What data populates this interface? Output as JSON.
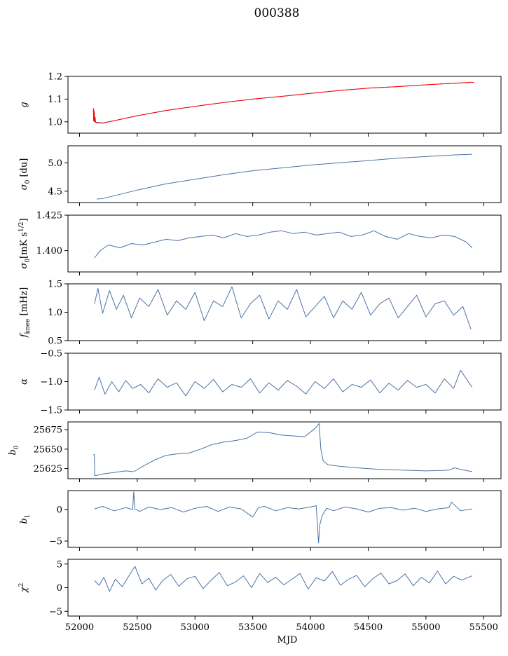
{
  "figure_title": "000388",
  "colors": {
    "series": "#4c72a4",
    "model": "#ff0000",
    "frame": "#000000"
  },
  "chart_data": [
    {
      "id": "g",
      "type": "line",
      "ylabel": "g",
      "xlim": [
        51900,
        55650
      ],
      "ylim": [
        0.95,
        1.2
      ],
      "yticks": [
        1.0,
        1.1,
        1.2
      ],
      "ytick_labels": [
        "1.0",
        "1.1",
        "1.2"
      ],
      "series": [
        {
          "color": "#4c72a4",
          "x": [
            52120,
            52140,
            52200,
            52300,
            52500,
            52750,
            53000,
            53250,
            53500,
            53750,
            54000,
            54250,
            54500,
            54750,
            55000,
            55250,
            55400
          ],
          "y": [
            1.005,
            0.998,
            0.995,
            1.005,
            1.027,
            1.05,
            1.068,
            1.085,
            1.1,
            1.112,
            1.125,
            1.138,
            1.148,
            1.155,
            1.163,
            1.17,
            1.174
          ]
        },
        {
          "color": "#ff0000",
          "x": [
            52120,
            52122,
            52124,
            52126,
            52128,
            52130,
            52135,
            52140,
            52150,
            52200,
            52300,
            52500,
            52750,
            53000,
            53250,
            53500,
            53750,
            54000,
            54250,
            54500,
            54750,
            55000,
            55250,
            55400,
            55420
          ],
          "y": [
            1.06,
            1.005,
            1.055,
            1.002,
            1.045,
            1.0,
            1.02,
            0.998,
            0.995,
            0.994,
            1.005,
            1.027,
            1.05,
            1.068,
            1.085,
            1.1,
            1.112,
            1.125,
            1.138,
            1.148,
            1.155,
            1.163,
            1.17,
            1.174,
            1.172
          ]
        }
      ]
    },
    {
      "id": "sigma0-du",
      "type": "line",
      "ylabel": "σ0 [du]",
      "xlim": [
        51900,
        55650
      ],
      "ylim": [
        4.3,
        5.3
      ],
      "yticks": [
        4.5,
        5.0
      ],
      "ytick_labels": [
        "4.5",
        "5.0"
      ],
      "series": [
        {
          "color": "#4c72a4",
          "x": [
            52150,
            52200,
            52300,
            52500,
            52750,
            53000,
            53250,
            53500,
            53750,
            54000,
            54250,
            54500,
            54750,
            55000,
            55250,
            55400
          ],
          "y": [
            4.36,
            4.37,
            4.42,
            4.52,
            4.63,
            4.71,
            4.79,
            4.86,
            4.91,
            4.96,
            5.0,
            5.04,
            5.08,
            5.11,
            5.14,
            5.15
          ]
        }
      ]
    },
    {
      "id": "sigma0-mks",
      "type": "line",
      "ylabel": "σ0[mKs1/2]",
      "xlim": [
        51900,
        55650
      ],
      "ylim": [
        1.385,
        1.425
      ],
      "yticks": [
        1.4,
        1.425
      ],
      "ytick_labels": [
        "1.400",
        "1.425"
      ],
      "series": [
        {
          "color": "#4c72a4",
          "x": [
            52130,
            52180,
            52250,
            52350,
            52450,
            52550,
            52650,
            52750,
            52850,
            52950,
            53050,
            53150,
            53250,
            53350,
            53450,
            53550,
            53650,
            53750,
            53850,
            53950,
            54050,
            54150,
            54250,
            54350,
            54450,
            54550,
            54650,
            54750,
            54850,
            54950,
            55050,
            55150,
            55250,
            55350,
            55400
          ],
          "y": [
            1.395,
            1.4,
            1.404,
            1.402,
            1.405,
            1.404,
            1.406,
            1.408,
            1.407,
            1.409,
            1.41,
            1.411,
            1.409,
            1.412,
            1.41,
            1.411,
            1.413,
            1.414,
            1.412,
            1.413,
            1.411,
            1.412,
            1.413,
            1.41,
            1.411,
            1.414,
            1.41,
            1.408,
            1.412,
            1.41,
            1.409,
            1.411,
            1.41,
            1.406,
            1.402
          ]
        }
      ]
    },
    {
      "id": "fknee",
      "type": "line",
      "ylabel": "fknee [mHz]",
      "xlim": [
        51900,
        55650
      ],
      "ylim": [
        0.5,
        1.5
      ],
      "yticks": [
        0.5,
        1.0,
        1.5
      ],
      "ytick_labels": [
        "0.5",
        "1.0",
        "1.5"
      ],
      "series": [
        {
          "color": "#4c72a4",
          "x": [
            52130,
            52160,
            52200,
            52260,
            52320,
            52380,
            52450,
            52520,
            52600,
            52680,
            52760,
            52840,
            52920,
            53000,
            53080,
            53160,
            53240,
            53320,
            53400,
            53480,
            53560,
            53640,
            53720,
            53800,
            53880,
            53960,
            54040,
            54120,
            54200,
            54280,
            54360,
            54440,
            54520,
            54600,
            54680,
            54760,
            54840,
            54920,
            55000,
            55080,
            55160,
            55240,
            55320,
            55390
          ],
          "y": [
            1.15,
            1.42,
            0.98,
            1.38,
            1.05,
            1.3,
            0.9,
            1.25,
            1.1,
            1.4,
            0.95,
            1.2,
            1.05,
            1.35,
            0.85,
            1.2,
            1.1,
            1.45,
            0.9,
            1.15,
            1.3,
            0.88,
            1.2,
            1.05,
            1.4,
            0.92,
            1.1,
            1.28,
            0.9,
            1.2,
            1.05,
            1.35,
            0.95,
            1.15,
            1.25,
            0.9,
            1.1,
            1.3,
            0.92,
            1.15,
            1.2,
            0.95,
            1.1,
            0.7
          ]
        }
      ]
    },
    {
      "id": "alpha",
      "type": "line",
      "ylabel": "α",
      "xlim": [
        51900,
        55650
      ],
      "ylim": [
        -1.5,
        -0.5
      ],
      "yticks": [
        -1.5,
        -1.0,
        -0.5
      ],
      "ytick_labels": [
        "−1.5",
        "−1.0",
        "−0.5"
      ],
      "series": [
        {
          "color": "#4c72a4",
          "x": [
            52130,
            52170,
            52220,
            52280,
            52340,
            52400,
            52460,
            52530,
            52600,
            52680,
            52760,
            52840,
            52920,
            53000,
            53080,
            53160,
            53240,
            53320,
            53400,
            53480,
            53560,
            53640,
            53720,
            53800,
            53880,
            53960,
            54040,
            54120,
            54200,
            54280,
            54360,
            54440,
            54520,
            54600,
            54680,
            54760,
            54840,
            54920,
            55000,
            55080,
            55160,
            55240,
            55300,
            55400
          ],
          "y": [
            -1.15,
            -0.92,
            -1.22,
            -1.0,
            -1.18,
            -0.98,
            -1.12,
            -1.05,
            -1.2,
            -0.95,
            -1.1,
            -1.02,
            -1.25,
            -1.0,
            -1.12,
            -0.96,
            -1.18,
            -1.05,
            -1.1,
            -0.95,
            -1.2,
            -1.02,
            -1.15,
            -0.98,
            -1.08,
            -1.22,
            -1.0,
            -1.12,
            -0.95,
            -1.18,
            -1.05,
            -1.1,
            -0.97,
            -1.2,
            -1.03,
            -1.15,
            -0.98,
            -1.1,
            -1.05,
            -1.2,
            -0.95,
            -1.12,
            -0.8,
            -1.1
          ]
        }
      ]
    },
    {
      "id": "b0",
      "type": "line",
      "ylabel": "b0",
      "xlim": [
        51900,
        55650
      ],
      "ylim": [
        25612,
        25685
      ],
      "yticks": [
        25625,
        25650,
        25675
      ],
      "ytick_labels": [
        "25625",
        "25650",
        "25675"
      ],
      "series": [
        {
          "color": "#4c72a4",
          "x": [
            52120,
            52128,
            52132,
            52140,
            52200,
            52300,
            52400,
            52470,
            52550,
            52650,
            52750,
            52850,
            52950,
            53050,
            53150,
            53250,
            53350,
            53450,
            53530,
            53550,
            53650,
            53750,
            53850,
            53950,
            54050,
            54075,
            54090,
            54110,
            54150,
            54250,
            54400,
            54600,
            54800,
            55000,
            55200,
            55250,
            55300,
            55400
          ],
          "y": [
            25643,
            25643,
            25616,
            25616,
            25618,
            25620,
            25622,
            25621,
            25628,
            25636,
            25642,
            25644,
            25645,
            25650,
            25656,
            25659,
            25661,
            25664,
            25671,
            25672,
            25671,
            25668,
            25667,
            25666,
            25678,
            25683,
            25650,
            25635,
            25630,
            25628,
            25626,
            25624,
            25623,
            25622,
            25623,
            25626,
            25624,
            25621
          ]
        }
      ]
    },
    {
      "id": "b1",
      "type": "line",
      "ylabel": "b1",
      "xlim": [
        51900,
        55650
      ],
      "ylim": [
        -6,
        3
      ],
      "yticks": [
        -5,
        0
      ],
      "ytick_labels": [
        "−5",
        "0"
      ],
      "series": [
        {
          "color": "#4c72a4",
          "x": [
            52130,
            52200,
            52300,
            52400,
            52460,
            52470,
            52480,
            52520,
            52600,
            52700,
            52800,
            52900,
            53000,
            53100,
            53200,
            53300,
            53400,
            53500,
            53550,
            53600,
            53700,
            53800,
            53900,
            54000,
            54050,
            54070,
            54080,
            54100,
            54140,
            54200,
            54300,
            54400,
            54500,
            54600,
            54700,
            54800,
            54900,
            55000,
            55100,
            55200,
            55220,
            55300,
            55400
          ],
          "y": [
            0.1,
            0.5,
            -0.2,
            0.3,
            0.0,
            2.8,
            0.1,
            -0.3,
            0.4,
            0.0,
            0.3,
            -0.4,
            0.2,
            0.5,
            -0.3,
            0.4,
            0.1,
            -1.2,
            0.3,
            0.5,
            -0.2,
            0.3,
            0.1,
            0.4,
            0.6,
            -5.3,
            -2.5,
            -1.0,
            0.2,
            -0.2,
            0.4,
            0.1,
            -0.4,
            0.2,
            0.3,
            -0.1,
            0.2,
            -0.3,
            0.1,
            0.3,
            1.2,
            -0.2,
            0.1
          ]
        }
      ]
    },
    {
      "id": "chi2",
      "type": "line",
      "ylabel": "χ2",
      "xlabel": "MJD",
      "xlim": [
        51900,
        55650
      ],
      "ylim": [
        -6,
        6
      ],
      "yticks": [
        -5,
        0,
        5
      ],
      "ytick_labels": [
        "−5",
        "0",
        "5"
      ],
      "xticks": [
        52000,
        52500,
        53000,
        53500,
        54000,
        54500,
        55000,
        55500
      ],
      "xtick_labels": [
        "52000",
        "52500",
        "53000",
        "53500",
        "54000",
        "54500",
        "55000",
        "55500"
      ],
      "series": [
        {
          "color": "#4c72a4",
          "x": [
            52130,
            52170,
            52210,
            52260,
            52310,
            52370,
            52430,
            52480,
            52540,
            52600,
            52660,
            52720,
            52790,
            52860,
            52930,
            53000,
            53070,
            53140,
            53210,
            53280,
            53350,
            53420,
            53490,
            53560,
            53630,
            53700,
            53770,
            53840,
            53910,
            53980,
            54050,
            54120,
            54190,
            54260,
            54330,
            54400,
            54470,
            54540,
            54610,
            54680,
            54750,
            54820,
            54890,
            54960,
            55030,
            55100,
            55170,
            55240,
            55310,
            55400
          ],
          "y": [
            1.5,
            0.5,
            2.2,
            -0.8,
            1.8,
            0.2,
            2.6,
            4.5,
            0.8,
            2.0,
            -0.5,
            1.5,
            2.8,
            0.3,
            1.9,
            2.4,
            -0.2,
            1.6,
            3.2,
            0.4,
            1.2,
            2.5,
            0.0,
            3.0,
            1.1,
            2.2,
            0.6,
            1.8,
            3.0,
            -0.3,
            2.1,
            1.4,
            3.4,
            0.5,
            1.8,
            2.6,
            0.2,
            1.9,
            3.1,
            0.8,
            1.5,
            2.9,
            0.4,
            2.2,
            1.0,
            3.5,
            0.8,
            2.4,
            1.6,
            2.5
          ]
        }
      ]
    }
  ]
}
